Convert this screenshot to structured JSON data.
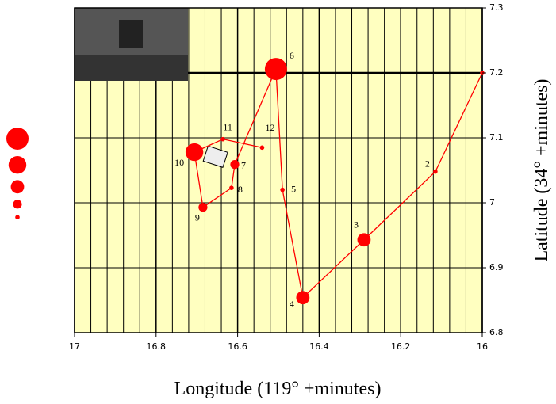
{
  "chart_data": {
    "type": "scatter",
    "x_label": "Longitude (119° +minutes)",
    "y_label": "Latitude (34° +minutes)",
    "x": [
      16.0,
      16.115,
      16.29,
      16.44,
      16.49,
      16.506,
      16.607,
      16.615,
      16.685,
      16.706,
      16.636,
      16.54
    ],
    "values": [
      7.2,
      7.048,
      6.943,
      6.854,
      7.02,
      7.206,
      7.059,
      7.023,
      6.993,
      7.078,
      7.098,
      7.085
    ],
    "sizes": [
      1,
      1,
      3,
      3,
      1,
      5,
      2,
      1,
      2,
      4,
      1,
      1
    ],
    "point_labels": [
      null,
      "2",
      "3",
      "4",
      "5",
      "6",
      "7",
      "8",
      "9",
      "10",
      "11",
      "12"
    ],
    "legend_sizes": [
      5,
      4,
      3,
      2,
      1
    ],
    "color": "#ff0000",
    "xlim": [
      17,
      16
    ],
    "ylim": [
      6.8,
      7.3
    ],
    "xticks": [
      17,
      16.8,
      16.6,
      16.4,
      16.2,
      16
    ],
    "yticks": [
      6.8,
      6.9,
      7,
      7.1,
      7.2,
      7.3
    ],
    "xgrid": [
      16.96,
      16.92,
      16.88,
      16.84,
      16.76,
      16.72,
      16.68,
      16.64,
      16.56,
      16.52,
      16.48,
      16.44,
      16.36,
      16.32,
      16.28,
      16.24,
      16.16,
      16.12,
      16.08,
      16.04
    ],
    "grid": true
  }
}
